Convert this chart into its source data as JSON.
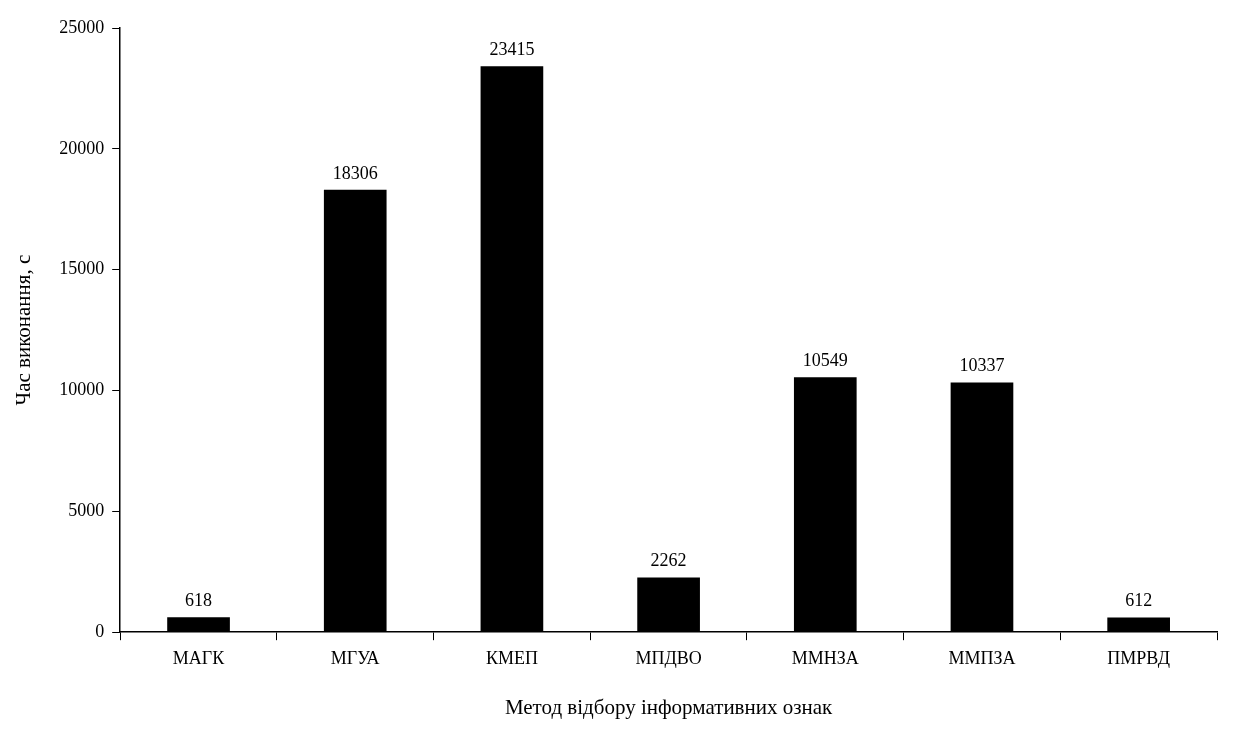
{
  "chart_data": {
    "type": "bar",
    "xlabel": "Метод відбору інформативних ознак",
    "ylabel": "Час виконання, с",
    "categories": [
      "МАГК",
      "МГУА",
      "КМЕП",
      "МПДВО",
      "ММНЗА",
      "ММПЗА",
      "ПМРВД"
    ],
    "values": [
      618,
      18306,
      23415,
      2262,
      10549,
      10337,
      612
    ],
    "color": "#000000",
    "ylim": [
      0,
      25000
    ],
    "yticks": [
      0,
      5000,
      10000,
      15000,
      20000,
      25000
    ],
    "grid": false,
    "legend": false,
    "data_labels": true
  }
}
